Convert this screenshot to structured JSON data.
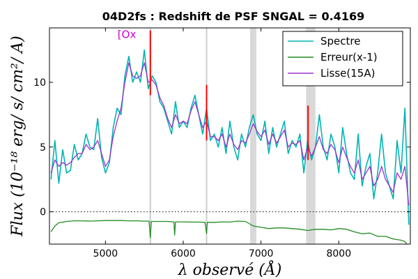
{
  "chart_data": {
    "type": "line",
    "title": "04D2fs : Redshift de PSF SNGAL = 0.4169",
    "xlabel": "λ observé (Å)",
    "ylabel": "Flux (10⁻¹⁸ erg/ s/ cm²/ A)",
    "xlim": [
      4280,
      8920
    ],
    "ylim": [
      -2.5,
      14.2
    ],
    "x_ticks": [
      5000,
      6000,
      7000,
      8000
    ],
    "y_ticks": [
      0,
      5,
      10
    ],
    "x_tick_labels": [
      "5000",
      "6000",
      "7000",
      "8000"
    ],
    "y_tick_labels": [
      "0",
      "5",
      "10"
    ],
    "legend_position": "top-right",
    "zero_line": {
      "y": 0,
      "style": "dotted"
    },
    "annotations": [
      {
        "text": "[Ox",
        "x": 5275,
        "y": 14.0,
        "color": "#cc00cc"
      }
    ],
    "shaded_bands": [
      [
        6860,
        6940
      ],
      [
        7580,
        7700
      ]
    ],
    "sky_lines": [
      5577,
      6300
    ],
    "red_marks": [
      {
        "x": 5577,
        "y_low": 9.0,
        "y_high": 14.0
      },
      {
        "x": 6300,
        "y_low": 5.5,
        "y_high": 9.8
      },
      {
        "x": 7605,
        "y_low": 4.0,
        "y_high": 8.2
      }
    ],
    "series": [
      {
        "name": "Spectre",
        "color": "#00b3b3",
        "x": [
          4300,
          4350,
          4400,
          4450,
          4500,
          4550,
          4600,
          4650,
          4700,
          4750,
          4800,
          4850,
          4900,
          4950,
          5000,
          5050,
          5100,
          5150,
          5200,
          5250,
          5300,
          5350,
          5400,
          5450,
          5500,
          5550,
          5600,
          5650,
          5700,
          5750,
          5800,
          5850,
          5900,
          5950,
          6000,
          6050,
          6100,
          6150,
          6200,
          6250,
          6300,
          6350,
          6400,
          6450,
          6500,
          6550,
          6600,
          6650,
          6700,
          6750,
          6800,
          6850,
          6900,
          6950,
          7000,
          7050,
          7100,
          7150,
          7200,
          7250,
          7300,
          7350,
          7400,
          7450,
          7500,
          7550,
          7600,
          7650,
          7700,
          7750,
          7800,
          7850,
          7900,
          7950,
          8000,
          8050,
          8100,
          8150,
          8200,
          8250,
          8300,
          8350,
          8400,
          8450,
          8500,
          8550,
          8600,
          8650,
          8700,
          8750,
          8800,
          8850,
          8900
        ],
        "y": [
          2.5,
          5.5,
          2.2,
          4.8,
          3.0,
          3.2,
          5.2,
          4.0,
          4.5,
          6.0,
          5.0,
          4.8,
          7.2,
          4.2,
          3.0,
          3.8,
          6.5,
          8.0,
          7.5,
          10.5,
          12.0,
          10.0,
          10.8,
          10.0,
          12.5,
          9.5,
          10.5,
          10.0,
          8.5,
          8.0,
          7.0,
          6.0,
          8.5,
          6.5,
          7.0,
          6.5,
          8.0,
          9.0,
          7.5,
          6.0,
          8.0,
          5.5,
          6.0,
          5.0,
          6.5,
          4.5,
          7.0,
          5.0,
          4.0,
          6.0,
          5.0,
          6.5,
          7.5,
          6.0,
          5.5,
          7.0,
          4.5,
          6.5,
          5.0,
          6.0,
          7.0,
          4.5,
          5.5,
          5.0,
          6.0,
          3.0,
          5.5,
          4.0,
          5.0,
          7.5,
          5.0,
          4.0,
          6.0,
          5.0,
          3.0,
          6.5,
          4.5,
          3.0,
          2.5,
          6.0,
          2.0,
          3.5,
          4.5,
          1.0,
          3.0,
          6.0,
          3.0,
          2.0,
          1.0,
          5.5,
          3.0,
          8.0,
          -1.0
        ]
      },
      {
        "name": "Erreur(x-1)",
        "color": "#228b22",
        "x": [
          4300,
          4350,
          4400,
          4500,
          4600,
          4700,
          4800,
          4900,
          5000,
          5100,
          5200,
          5300,
          5400,
          5500,
          5560,
          5577,
          5590,
          5700,
          5800,
          5880,
          5890,
          5900,
          6000,
          6100,
          6200,
          6280,
          6300,
          6310,
          6400,
          6500,
          6600,
          6700,
          6800,
          6900,
          7000,
          7100,
          7200,
          7300,
          7400,
          7500,
          7600,
          7700,
          7800,
          7900,
          8000,
          8100,
          8200,
          8300,
          8400,
          8500,
          8600,
          8700,
          8800,
          8850,
          8900
        ],
        "y": [
          -1.55,
          -1.1,
          -0.85,
          -0.75,
          -0.7,
          -0.7,
          -0.72,
          -0.7,
          -0.68,
          -0.68,
          -0.68,
          -0.7,
          -0.7,
          -0.72,
          -0.72,
          -2.0,
          -0.75,
          -0.75,
          -0.75,
          -0.78,
          -1.8,
          -0.78,
          -0.78,
          -0.8,
          -0.8,
          -0.82,
          -1.7,
          -0.82,
          -0.82,
          -0.78,
          -0.8,
          -0.72,
          -0.75,
          -1.1,
          -1.2,
          -1.3,
          -1.25,
          -1.25,
          -1.3,
          -1.35,
          -1.45,
          -1.35,
          -1.35,
          -1.4,
          -1.3,
          -1.35,
          -1.55,
          -1.7,
          -1.65,
          -1.9,
          -1.9,
          -2.1,
          -2.2,
          -2.3,
          -2.7
        ]
      },
      {
        "name": "Lisse(15A)",
        "color": "#9933cc",
        "x": [
          4300,
          4350,
          4400,
          4450,
          4500,
          4550,
          4600,
          4650,
          4700,
          4750,
          4800,
          4850,
          4900,
          4950,
          5000,
          5050,
          5100,
          5150,
          5200,
          5250,
          5300,
          5350,
          5400,
          5450,
          5500,
          5550,
          5600,
          5650,
          5700,
          5750,
          5800,
          5850,
          5900,
          5950,
          6000,
          6050,
          6100,
          6150,
          6200,
          6250,
          6300,
          6350,
          6400,
          6450,
          6500,
          6550,
          6600,
          6650,
          6700,
          6750,
          6800,
          6850,
          6900,
          6950,
          7000,
          7050,
          7100,
          7150,
          7200,
          7250,
          7300,
          7350,
          7400,
          7450,
          7500,
          7550,
          7600,
          7650,
          7700,
          7750,
          7800,
          7850,
          7900,
          7950,
          8000,
          8050,
          8100,
          8150,
          8200,
          8250,
          8300,
          8350,
          8400,
          8450,
          8500,
          8550,
          8600,
          8650,
          8700,
          8750,
          8800,
          8850,
          8900
        ],
        "y": [
          3.0,
          4.0,
          3.5,
          3.8,
          3.6,
          3.8,
          4.2,
          4.5,
          4.5,
          5.2,
          4.8,
          5.0,
          5.5,
          4.5,
          3.5,
          4.0,
          5.8,
          7.0,
          8.0,
          10.0,
          11.5,
          10.5,
          10.3,
          10.5,
          11.5,
          10.0,
          10.2,
          9.8,
          8.8,
          8.2,
          7.2,
          6.5,
          7.5,
          6.8,
          7.0,
          6.8,
          7.8,
          8.5,
          7.5,
          6.5,
          7.0,
          5.8,
          5.8,
          5.5,
          6.0,
          5.0,
          6.0,
          5.2,
          4.8,
          5.5,
          5.3,
          6.0,
          6.8,
          6.2,
          5.8,
          6.3,
          5.2,
          6.0,
          5.3,
          5.8,
          6.3,
          5.0,
          5.3,
          5.2,
          5.5,
          4.0,
          5.0,
          4.3,
          5.0,
          5.8,
          4.8,
          4.5,
          5.2,
          4.8,
          3.8,
          5.0,
          4.2,
          3.5,
          3.0,
          4.0,
          2.5,
          3.0,
          3.5,
          2.0,
          2.5,
          3.5,
          2.5,
          2.0,
          1.5,
          3.0,
          2.5,
          3.5,
          0.5
        ]
      }
    ]
  }
}
